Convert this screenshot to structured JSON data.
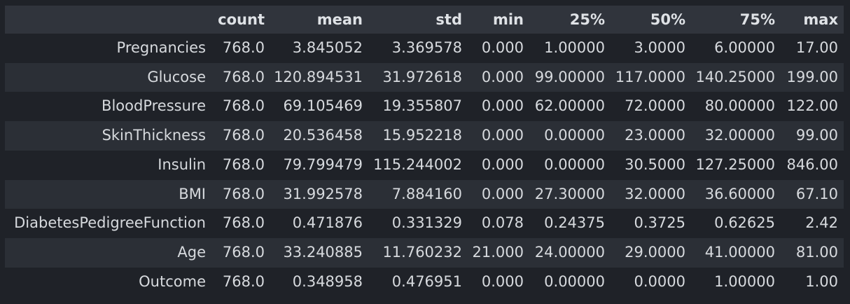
{
  "table": {
    "index_header": "",
    "columns": [
      "count",
      "mean",
      "std",
      "min",
      "25%",
      "50%",
      "75%",
      "max"
    ],
    "rows": [
      {
        "label": "Pregnancies",
        "values": [
          "768.0",
          "3.845052",
          "3.369578",
          "0.000",
          "1.00000",
          "3.0000",
          "6.00000",
          "17.00"
        ]
      },
      {
        "label": "Glucose",
        "values": [
          "768.0",
          "120.894531",
          "31.972618",
          "0.000",
          "99.00000",
          "117.0000",
          "140.25000",
          "199.00"
        ]
      },
      {
        "label": "BloodPressure",
        "values": [
          "768.0",
          "69.105469",
          "19.355807",
          "0.000",
          "62.00000",
          "72.0000",
          "80.00000",
          "122.00"
        ]
      },
      {
        "label": "SkinThickness",
        "values": [
          "768.0",
          "20.536458",
          "15.952218",
          "0.000",
          "0.00000",
          "23.0000",
          "32.00000",
          "99.00"
        ]
      },
      {
        "label": "Insulin",
        "values": [
          "768.0",
          "79.799479",
          "115.244002",
          "0.000",
          "0.00000",
          "30.5000",
          "127.25000",
          "846.00"
        ]
      },
      {
        "label": "BMI",
        "values": [
          "768.0",
          "31.992578",
          "7.884160",
          "0.000",
          "27.30000",
          "32.0000",
          "36.60000",
          "67.10"
        ]
      },
      {
        "label": "DiabetesPedigreeFunction",
        "values": [
          "768.0",
          "0.471876",
          "0.331329",
          "0.078",
          "0.24375",
          "0.3725",
          "0.62625",
          "2.42"
        ]
      },
      {
        "label": "Age",
        "values": [
          "768.0",
          "33.240885",
          "11.760232",
          "21.000",
          "24.00000",
          "29.0000",
          "41.00000",
          "81.00"
        ]
      },
      {
        "label": "Outcome",
        "values": [
          "768.0",
          "0.348958",
          "0.476951",
          "0.000",
          "0.00000",
          "0.0000",
          "1.00000",
          "1.00"
        ]
      }
    ]
  }
}
